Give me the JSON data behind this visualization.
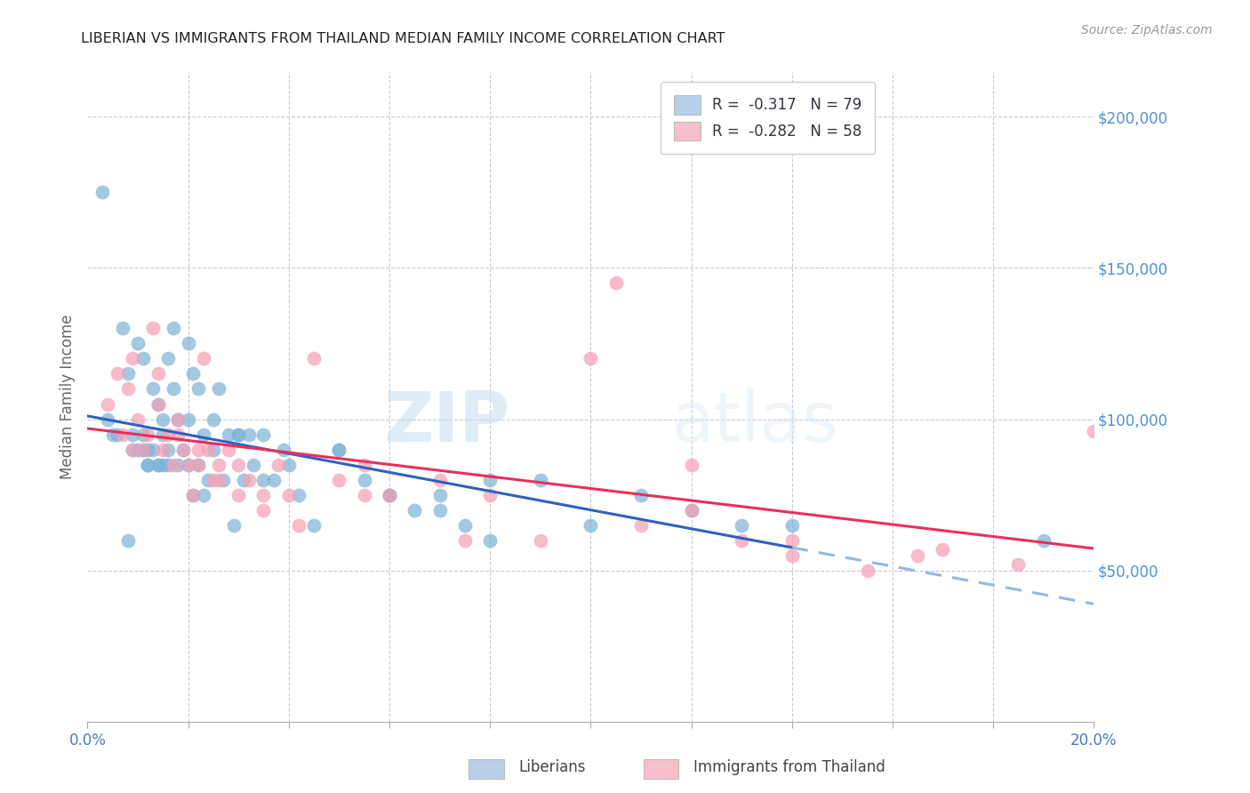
{
  "title": "LIBERIAN VS IMMIGRANTS FROM THAILAND MEDIAN FAMILY INCOME CORRELATION CHART",
  "source": "Source: ZipAtlas.com",
  "ylabel": "Median Family Income",
  "legend_blue_label": "R =  -0.317   N = 79",
  "legend_pink_label": "R =  -0.282   N = 58",
  "legend_blue_color": "#b8d0e8",
  "legend_pink_color": "#f5c0cc",
  "dot_blue_color": "#7fb3d8",
  "dot_pink_color": "#f5a0b5",
  "trend_blue_color": "#3060c0",
  "trend_pink_color": "#e8305a",
  "trend_blue_dash_color": "#90b8e0",
  "background_color": "#ffffff",
  "grid_color": "#c8c8d0",
  "title_color": "#222222",
  "right_axis_color": "#5090d0",
  "watermark": "ZIPatlas",
  "blue_scatter_x": [
    0.3,
    0.5,
    0.6,
    0.7,
    0.8,
    0.9,
    1.0,
    1.0,
    1.1,
    1.1,
    1.2,
    1.2,
    1.3,
    1.3,
    1.4,
    1.4,
    1.5,
    1.5,
    1.6,
    1.6,
    1.7,
    1.7,
    1.8,
    1.8,
    1.9,
    2.0,
    2.0,
    2.1,
    2.1,
    2.2,
    2.2,
    2.3,
    2.3,
    2.4,
    2.5,
    2.6,
    2.7,
    2.8,
    2.9,
    3.0,
    3.1,
    3.2,
    3.3,
    3.5,
    3.7,
    3.9,
    4.2,
    4.5,
    5.0,
    5.5,
    6.0,
    6.5,
    7.0,
    7.5,
    8.0,
    9.0,
    10.0,
    11.0,
    12.0,
    13.0,
    14.0,
    0.4,
    0.8,
    1.2,
    1.5,
    2.0,
    2.5,
    3.0,
    3.5,
    4.0,
    5.0,
    6.0,
    7.0,
    8.0,
    0.9,
    1.1,
    1.4,
    1.6,
    19.0
  ],
  "blue_scatter_y": [
    175000,
    95000,
    95000,
    130000,
    115000,
    95000,
    125000,
    90000,
    120000,
    95000,
    85000,
    90000,
    110000,
    90000,
    105000,
    85000,
    100000,
    85000,
    120000,
    90000,
    110000,
    130000,
    100000,
    85000,
    90000,
    125000,
    85000,
    115000,
    75000,
    110000,
    85000,
    95000,
    75000,
    80000,
    90000,
    110000,
    80000,
    95000,
    65000,
    95000,
    80000,
    95000,
    85000,
    95000,
    80000,
    90000,
    75000,
    65000,
    90000,
    80000,
    75000,
    70000,
    75000,
    65000,
    80000,
    80000,
    65000,
    75000,
    70000,
    65000,
    65000,
    100000,
    60000,
    85000,
    95000,
    100000,
    100000,
    95000,
    80000,
    85000,
    90000,
    75000,
    70000,
    60000,
    90000,
    90000,
    85000,
    85000,
    60000
  ],
  "pink_scatter_x": [
    0.4,
    0.6,
    0.7,
    0.8,
    0.9,
    1.0,
    1.1,
    1.2,
    1.3,
    1.4,
    1.5,
    1.6,
    1.7,
    1.8,
    1.9,
    2.0,
    2.1,
    2.2,
    2.3,
    2.4,
    2.5,
    2.6,
    2.8,
    3.0,
    3.2,
    3.5,
    3.8,
    4.0,
    4.5,
    5.0,
    5.5,
    6.0,
    7.0,
    8.0,
    9.0,
    10.0,
    11.0,
    12.0,
    13.0,
    14.0,
    0.9,
    1.4,
    1.8,
    2.2,
    2.6,
    3.0,
    3.5,
    4.2,
    5.5,
    7.5,
    10.5,
    12.0,
    14.0,
    15.5,
    16.5,
    17.0,
    18.5,
    20.0
  ],
  "pink_scatter_y": [
    105000,
    115000,
    95000,
    110000,
    90000,
    100000,
    90000,
    95000,
    130000,
    115000,
    90000,
    95000,
    85000,
    95000,
    90000,
    85000,
    75000,
    85000,
    120000,
    90000,
    80000,
    85000,
    90000,
    85000,
    80000,
    75000,
    85000,
    75000,
    120000,
    80000,
    85000,
    75000,
    80000,
    75000,
    60000,
    120000,
    65000,
    70000,
    60000,
    55000,
    120000,
    105000,
    100000,
    90000,
    80000,
    75000,
    70000,
    65000,
    75000,
    60000,
    145000,
    85000,
    60000,
    50000,
    55000,
    57000,
    52000,
    96000
  ],
  "xlim": [
    0,
    20
  ],
  "ylim": [
    0,
    215000
  ],
  "blue_solid_end": 14.0,
  "blue_dash_start": 14.0,
  "blue_dash_end": 20.0
}
